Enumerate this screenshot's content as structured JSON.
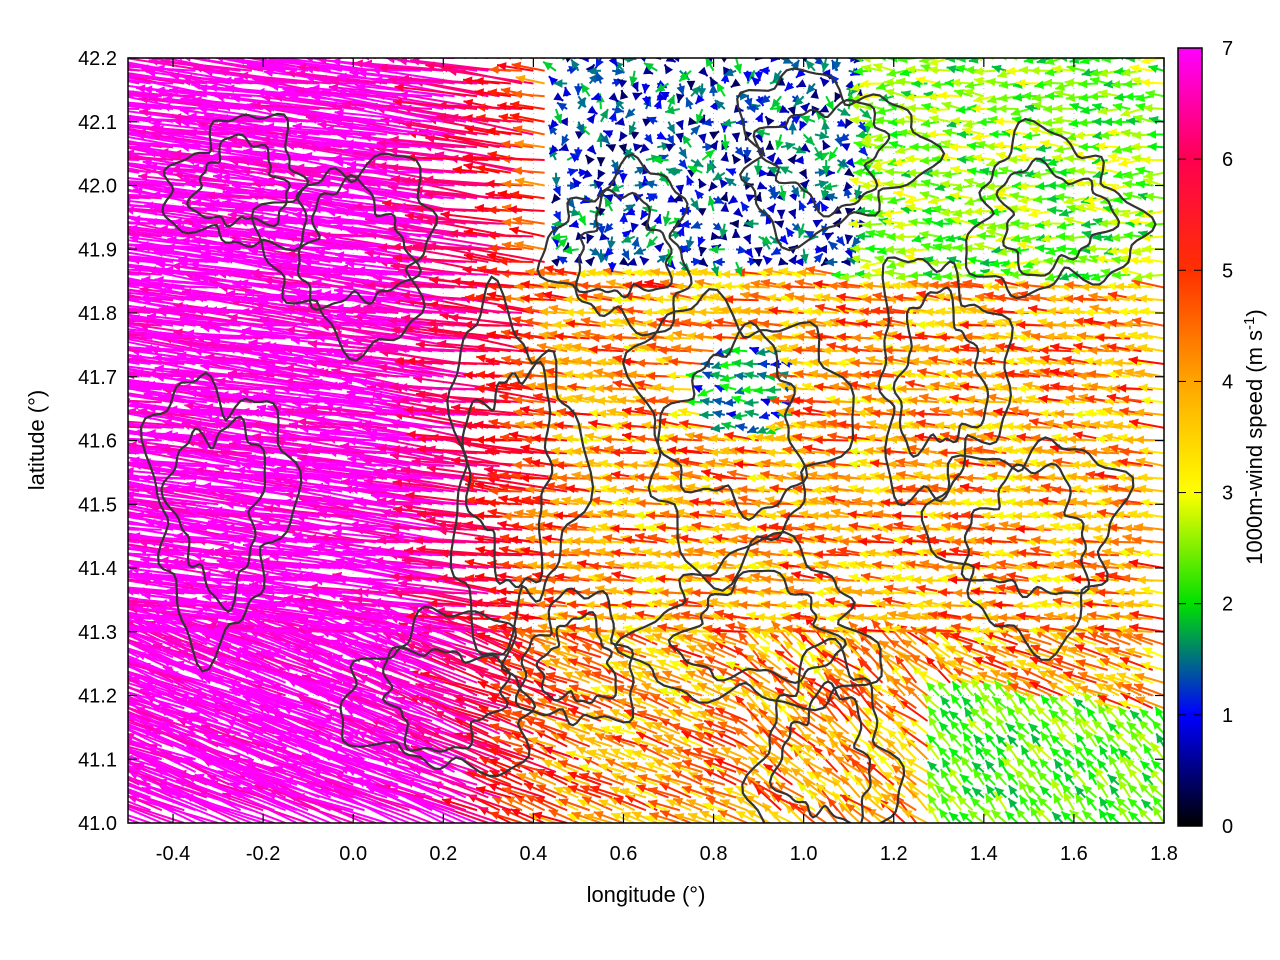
{
  "chart_data": {
    "type": "vector-field",
    "xlabel": "longitude (°)",
    "ylabel": "latitude (°)",
    "xlim": [
      -0.5,
      1.8
    ],
    "ylim": [
      41.0,
      42.2
    ],
    "x_ticks": [
      "-0.4",
      "-0.2",
      "0.0",
      "0.2",
      "0.4",
      "0.6",
      "0.8",
      "1.0",
      "1.2",
      "1.4",
      "1.6",
      "1.8"
    ],
    "y_ticks": [
      "41.0",
      "41.1",
      "41.2",
      "41.3",
      "41.4",
      "41.5",
      "41.6",
      "41.7",
      "41.8",
      "41.9",
      "42.0",
      "42.1",
      "42.2"
    ],
    "grid": true,
    "colorbar": {
      "label_main": "1000m-wind speed (m s",
      "label_sup": "-1",
      "label_end": ")",
      "range": [
        0,
        7
      ],
      "ticks": [
        "0",
        "1",
        "2",
        "3",
        "4",
        "5",
        "6",
        "7"
      ],
      "palette": [
        "#000000",
        "#0000ff",
        "#00ff00",
        "#ffff00",
        "#ffa500",
        "#ff0000",
        "#ff00ff"
      ]
    },
    "contour_color": "#333333",
    "wind_regimes": [
      {
        "region": "west",
        "lon_range": [
          -0.5,
          0.45
        ],
        "speed_ms": 7,
        "direction": "from east-southeast"
      },
      {
        "region": "north-central",
        "lon_range": [
          0.5,
          1.1
        ],
        "lat_range": [
          41.9,
          42.2
        ],
        "speed_ms": 0.8,
        "direction": "variable"
      },
      {
        "region": "central",
        "lon_range": [
          0.5,
          1.5
        ],
        "lat_range": [
          41.3,
          41.8
        ],
        "speed_ms": 4.5,
        "direction": "from east"
      },
      {
        "region": "southeast",
        "lon_range": [
          1.3,
          1.8
        ],
        "lat_range": [
          41.0,
          41.2
        ],
        "speed_ms": 2.5,
        "direction": "from south"
      }
    ]
  }
}
